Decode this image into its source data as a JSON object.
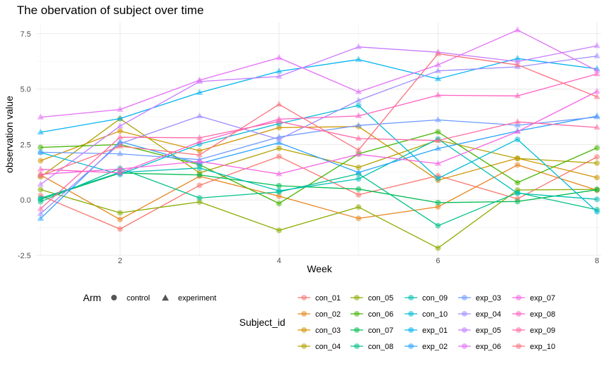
{
  "chart_data": {
    "type": "line",
    "title": "The obervation of subject over time",
    "xlabel": "Week",
    "ylabel": "observation value",
    "xlim": [
      0.95,
      8.05
    ],
    "ylim": [
      -2.5,
      8.0
    ],
    "x_ticks": [
      2,
      4,
      6,
      8
    ],
    "y_ticks": [
      -2.5,
      0.0,
      2.5,
      5.0,
      7.5
    ],
    "y_tick_labels": [
      "-2.5",
      "0.0",
      "2.5",
      "5.0",
      "7.5"
    ],
    "x": [
      1,
      2,
      3,
      4,
      5,
      6,
      7,
      8
    ],
    "legend_arm": {
      "title": "Arm",
      "entries": [
        {
          "label": "control",
          "shape": "circle"
        },
        {
          "label": "experiment",
          "shape": "triangle"
        }
      ]
    },
    "legend_subject_title": "Subject_id",
    "series": [
      {
        "name": "con_01",
        "arm": "control",
        "color": "#F8766D",
        "values": [
          0.2,
          -1.31,
          0.66,
          1.96,
          0.23,
          1.09,
          0.05,
          1.94
        ]
      },
      {
        "name": "con_02",
        "arm": "control",
        "color": "#E7851E",
        "values": [
          1.13,
          -0.88,
          1.07,
          0.17,
          -0.83,
          -0.31,
          1.58,
          0.44
        ]
      },
      {
        "name": "con_03",
        "arm": "control",
        "color": "#D09400",
        "values": [
          1.77,
          3.11,
          2.22,
          3.26,
          3.31,
          0.89,
          1.88,
          1.01
        ]
      },
      {
        "name": "con_04",
        "arm": "control",
        "color": "#B2A100",
        "values": [
          1.04,
          3.66,
          1.22,
          2.33,
          1.47,
          2.7,
          1.87,
          1.66
        ]
      },
      {
        "name": "con_05",
        "arm": "control",
        "color": "#89AC00",
        "values": [
          0.47,
          -0.58,
          -0.09,
          -1.37,
          -0.32,
          -2.17,
          0.45,
          0.48
        ]
      },
      {
        "name": "con_06",
        "arm": "control",
        "color": "#45B500",
        "values": [
          2.37,
          2.5,
          1.59,
          -0.16,
          2.08,
          3.07,
          0.78,
          2.35
        ]
      },
      {
        "name": "con_07",
        "arm": "control",
        "color": "#00BC51",
        "values": [
          0.03,
          1.21,
          1.13,
          0.64,
          0.49,
          -0.12,
          -0.07,
          0.46
        ]
      },
      {
        "name": "con_08",
        "arm": "control",
        "color": "#00C087",
        "values": [
          -0.08,
          1.42,
          0.09,
          0.36,
          1.18,
          -1.16,
          0.33,
          -0.44
        ]
      },
      {
        "name": "con_09",
        "arm": "control",
        "color": "#00C0B2",
        "values": [
          0.08,
          1.24,
          1.44,
          0.41,
          0.95,
          2.75,
          0.3,
          0.03
        ]
      },
      {
        "name": "con_10",
        "arm": "control",
        "color": "#00BCD6",
        "values": [
          2.14,
          1.15,
          2.52,
          3.44,
          4.26,
          0.97,
          2.73,
          -0.53
        ]
      },
      {
        "name": "exp_01",
        "arm": "experiment",
        "color": "#00B3F2",
        "values": [
          3.05,
          3.67,
          4.84,
          5.8,
          6.33,
          5.46,
          6.38,
          5.91
        ]
      },
      {
        "name": "exp_02",
        "arm": "experiment",
        "color": "#29A3FF",
        "values": [
          -0.84,
          2.63,
          1.64,
          2.58,
          1.24,
          2.32,
          3.11,
          3.78
        ]
      },
      {
        "name": "exp_03",
        "arm": "experiment",
        "color": "#6C9AFF",
        "values": [
          2.15,
          2.08,
          1.82,
          2.84,
          3.36,
          3.61,
          3.37,
          3.74
        ]
      },
      {
        "name": "exp_04",
        "arm": "experiment",
        "color": "#9C8DFF",
        "values": [
          -0.62,
          2.54,
          3.78,
          2.73,
          4.49,
          5.82,
          6.0,
          6.49
        ]
      },
      {
        "name": "exp_05",
        "arm": "experiment",
        "color": "#C77CFF",
        "values": [
          0.7,
          3.33,
          5.34,
          5.57,
          6.9,
          6.66,
          6.24,
          6.95
        ]
      },
      {
        "name": "exp_06",
        "arm": "experiment",
        "color": "#E36EF6",
        "values": [
          3.73,
          4.08,
          5.4,
          6.41,
          4.87,
          6.09,
          7.66,
          5.83
        ]
      },
      {
        "name": "exp_07",
        "arm": "experiment",
        "color": "#F564E3",
        "values": [
          1.15,
          1.4,
          1.74,
          1.17,
          2.06,
          1.64,
          3.08,
          4.89
        ]
      },
      {
        "name": "exp_08",
        "arm": "experiment",
        "color": "#FF61C3",
        "values": [
          1.38,
          1.22,
          2.62,
          3.64,
          3.79,
          4.72,
          4.69,
          5.68
        ]
      },
      {
        "name": "exp_09",
        "arm": "experiment",
        "color": "#FF67A4",
        "values": [
          -0.4,
          2.83,
          2.8,
          3.54,
          2.77,
          2.68,
          3.52,
          3.27
        ]
      },
      {
        "name": "exp_10",
        "arm": "experiment",
        "color": "#FC717F",
        "values": [
          1.09,
          2.42,
          2.03,
          4.31,
          2.25,
          6.59,
          6.09,
          4.65
        ]
      }
    ]
  }
}
